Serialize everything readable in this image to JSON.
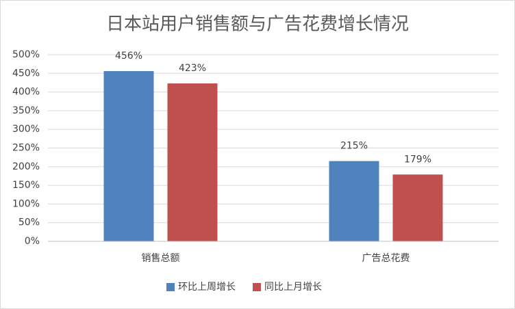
{
  "chart_data": {
    "type": "bar",
    "title": "日本站用户销售额与广告花费增长情况",
    "categories": [
      "销售总额",
      "广告总花费"
    ],
    "series": [
      {
        "name": "环比上周增长",
        "color": "#4f81bd",
        "values": [
          456,
          215
        ],
        "value_labels": [
          "456%",
          "215%"
        ]
      },
      {
        "name": "同比上月增长",
        "color": "#c0504d",
        "values": [
          423,
          179
        ],
        "value_labels": [
          "423%",
          "179%"
        ]
      }
    ],
    "ylim": [
      0,
      500
    ],
    "yticks": [
      {
        "value": 0,
        "label": "0%"
      },
      {
        "value": 50,
        "label": "50%"
      },
      {
        "value": 100,
        "label": "100%"
      },
      {
        "value": 150,
        "label": "150%"
      },
      {
        "value": 200,
        "label": "200%"
      },
      {
        "value": 250,
        "label": "250%"
      },
      {
        "value": 300,
        "label": "300%"
      },
      {
        "value": 350,
        "label": "350%"
      },
      {
        "value": 400,
        "label": "400%"
      },
      {
        "value": 450,
        "label": "450%"
      },
      {
        "value": 500,
        "label": "500%"
      }
    ],
    "grid": true,
    "legend": "bottom"
  }
}
